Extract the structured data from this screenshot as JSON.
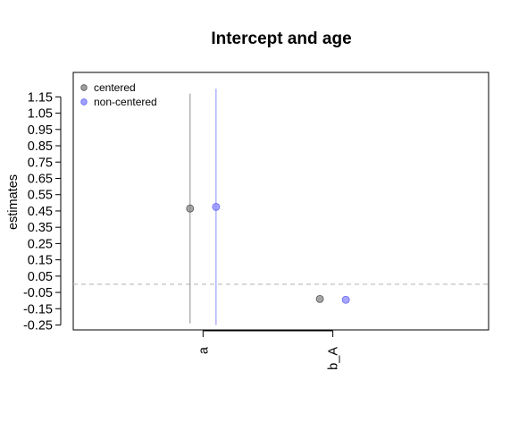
{
  "chart_data": {
    "type": "scatter",
    "title": "Intercept and age",
    "ylabel": "estimates",
    "xlabel": "",
    "categories": [
      "a",
      "b_A"
    ],
    "yticks": [
      "1.15",
      "1.05",
      "0.95",
      "0.85",
      "0.75",
      "0.65",
      "0.55",
      "0.45",
      "0.35",
      "0.25",
      "0.15",
      "0.05",
      "-0.05",
      "-0.15",
      "-0.25"
    ],
    "ylim": [
      -0.28,
      1.3
    ],
    "xlim": [
      0.5,
      3.7
    ],
    "reference_line": 0,
    "legend_position": "top-left",
    "series": [
      {
        "name": "centered",
        "color": "#888888",
        "points": [
          {
            "category": "a",
            "x": 1.4,
            "y": 0.465,
            "lower": -0.24,
            "upper": 1.17
          },
          {
            "category": "b_A",
            "x": 2.4,
            "y": -0.09
          }
        ]
      },
      {
        "name": "non-centered",
        "color": "#8888ff",
        "points": [
          {
            "category": "a",
            "x": 1.6,
            "y": 0.475,
            "lower": -0.25,
            "upper": 1.2
          },
          {
            "category": "b_A",
            "x": 2.6,
            "y": -0.095
          }
        ]
      }
    ]
  }
}
